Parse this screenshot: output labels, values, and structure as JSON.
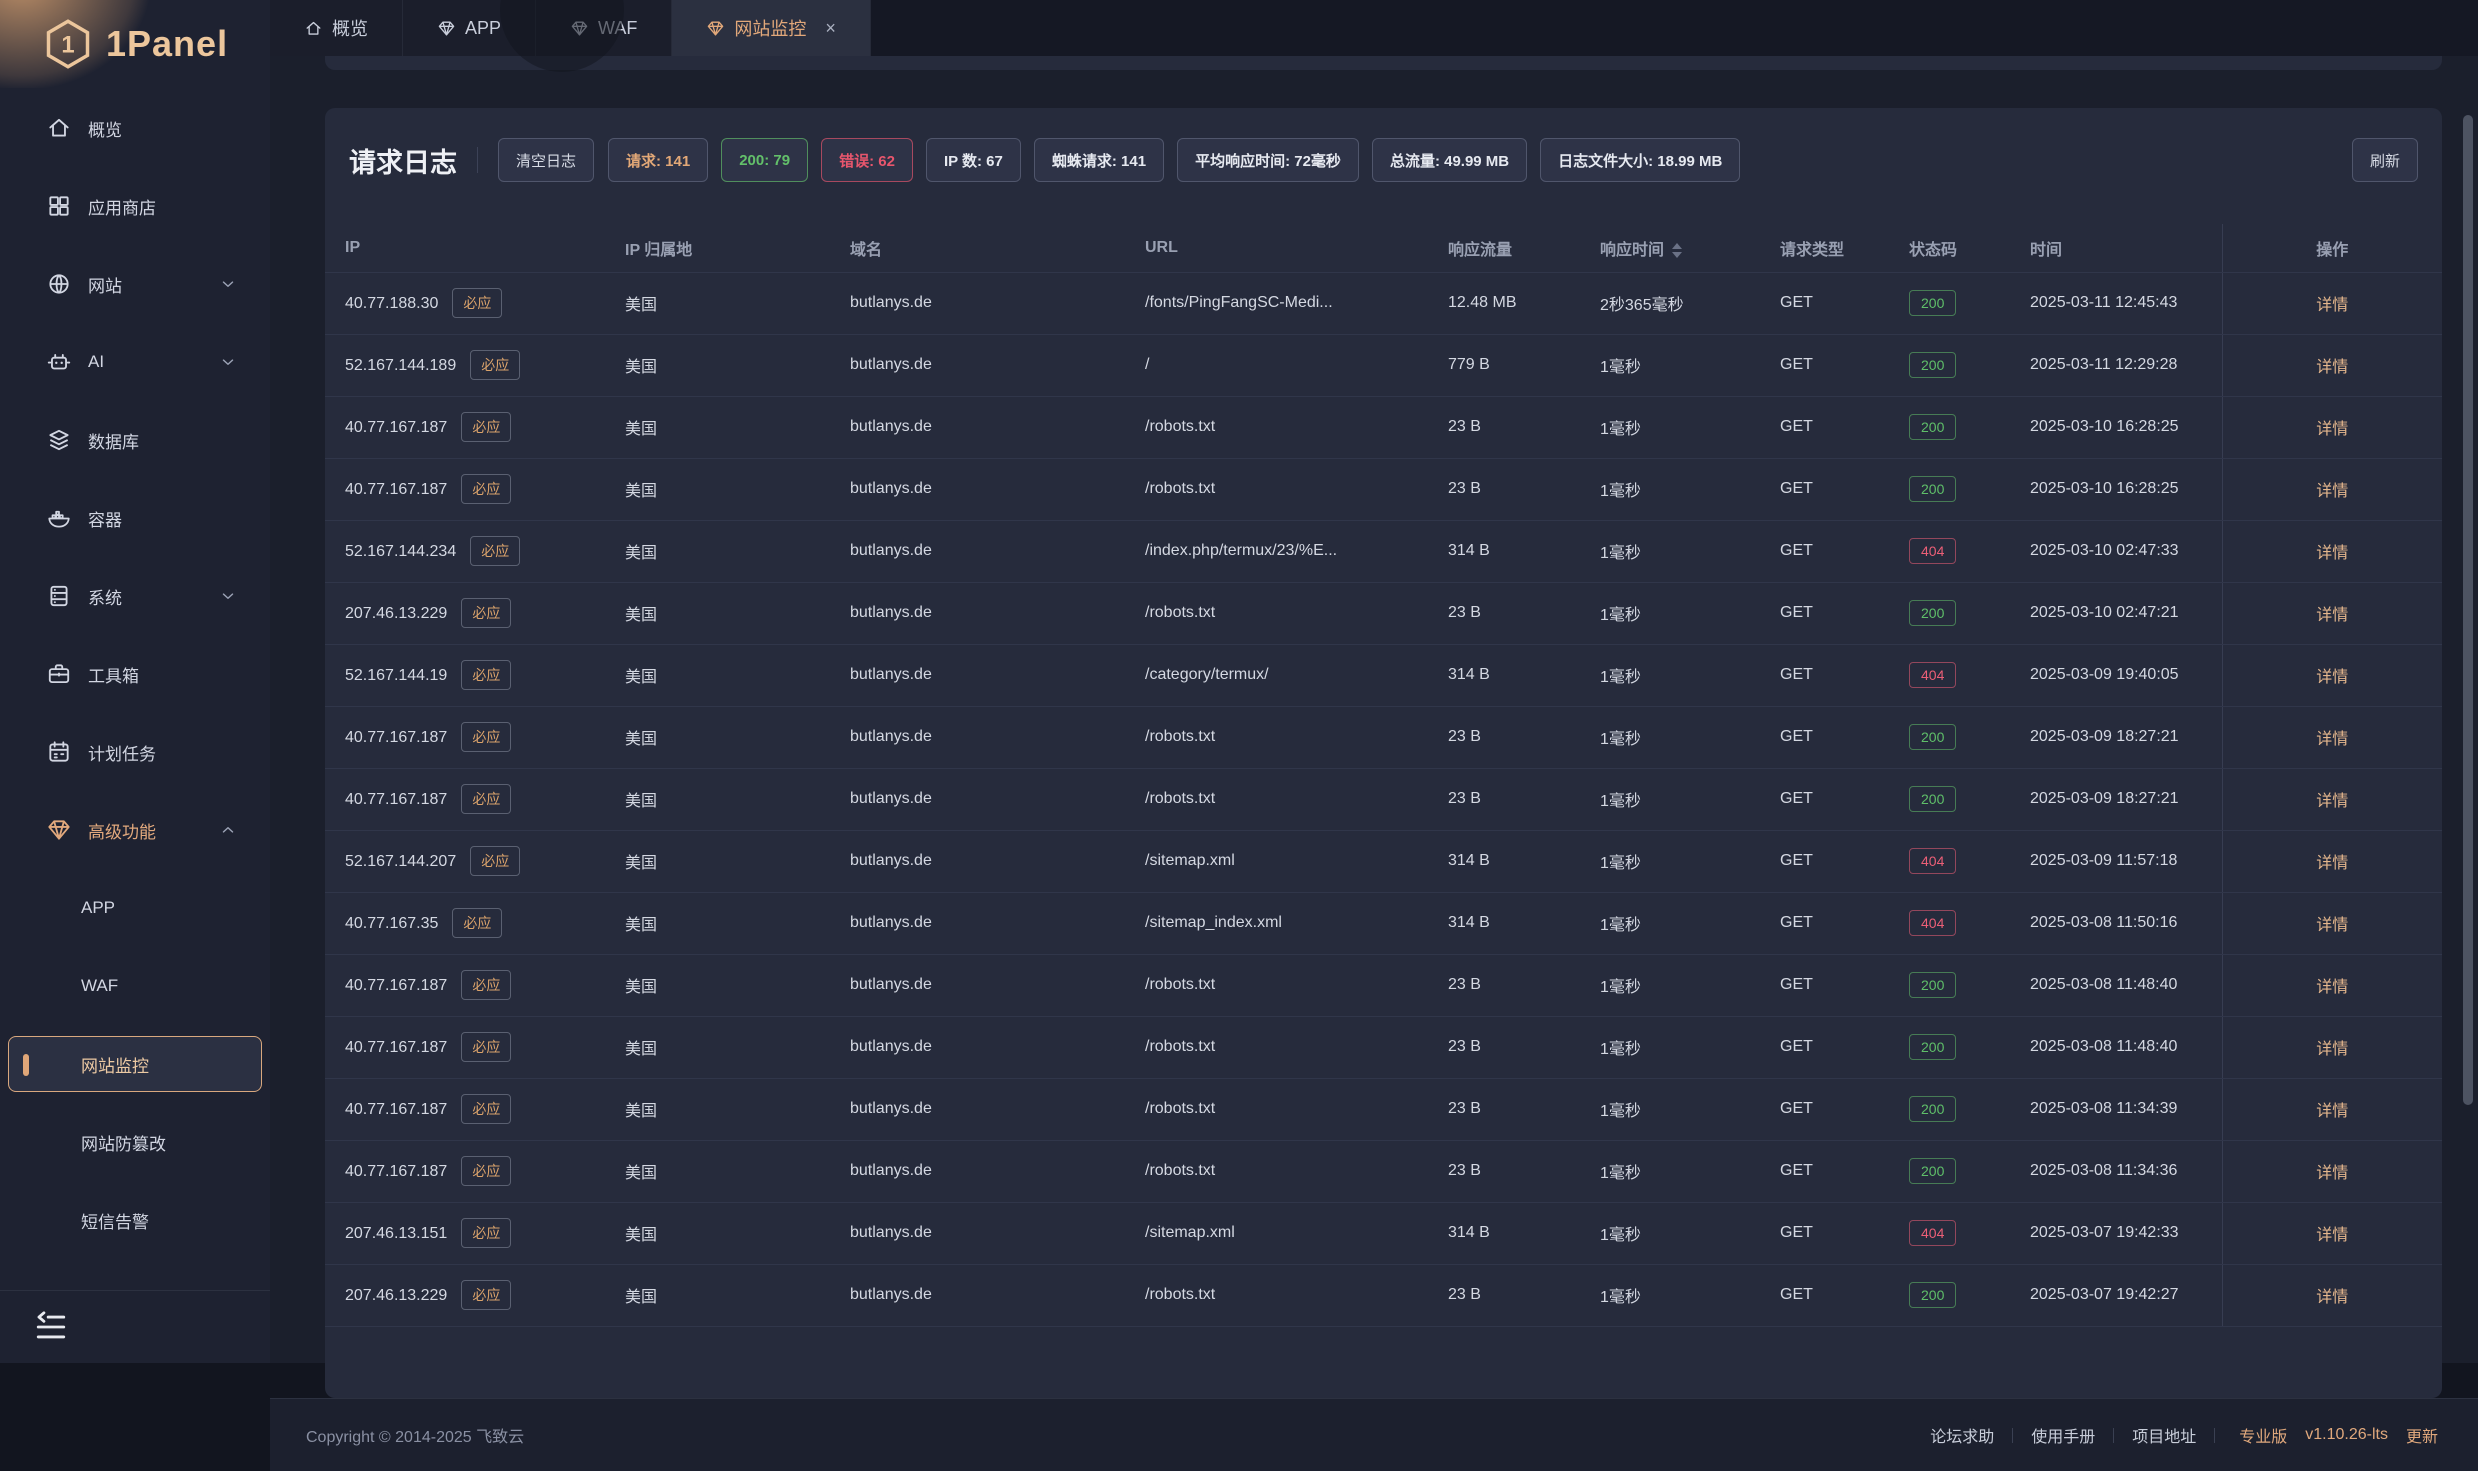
{
  "logo": {
    "text": "1Panel"
  },
  "tabs": [
    {
      "label": "概览",
      "icon": "home",
      "active": false,
      "closable": false
    },
    {
      "label": "APP",
      "icon": "gem",
      "active": false,
      "closable": false
    },
    {
      "label": "WAF",
      "icon": "gem",
      "active": false,
      "closable": false
    },
    {
      "label": "网站监控",
      "icon": "gem",
      "active": true,
      "closable": true,
      "close_glyph": "×"
    }
  ],
  "sidebar": {
    "items": [
      {
        "label": "概览",
        "icon": "home",
        "sub": false,
        "chevron": ""
      },
      {
        "label": "应用商店",
        "icon": "grid",
        "sub": false,
        "chevron": ""
      },
      {
        "label": "网站",
        "icon": "globe",
        "sub": false,
        "chevron": "down"
      },
      {
        "label": "AI",
        "icon": "robot",
        "sub": false,
        "chevron": "down"
      },
      {
        "label": "数据库",
        "icon": "layers",
        "sub": false,
        "chevron": ""
      },
      {
        "label": "容器",
        "icon": "docker",
        "sub": false,
        "chevron": ""
      },
      {
        "label": "系统",
        "icon": "server",
        "sub": false,
        "chevron": "down"
      },
      {
        "label": "工具箱",
        "icon": "toolbox",
        "sub": false,
        "chevron": ""
      },
      {
        "label": "计划任务",
        "icon": "calendar",
        "sub": false,
        "chevron": ""
      },
      {
        "label": "高级功能",
        "icon": "gem",
        "sub": false,
        "chevron": "up",
        "highlight": true
      },
      {
        "label": "APP",
        "sub": true,
        "chevron": ""
      },
      {
        "label": "WAF",
        "sub": true,
        "chevron": ""
      },
      {
        "label": "网站监控",
        "sub": true,
        "chevron": "",
        "active": true
      },
      {
        "label": "网站防篡改",
        "sub": true,
        "chevron": ""
      },
      {
        "label": "短信告警",
        "sub": true,
        "chevron": ""
      }
    ]
  },
  "toolbar": {
    "title": "请求日志",
    "clear_label": "清空日志",
    "refresh_label": "刷新",
    "stats": [
      {
        "label": "请求: 141",
        "color": "orange"
      },
      {
        "label": "200: 79",
        "color": "green"
      },
      {
        "label": "错误: 62",
        "color": "red"
      },
      {
        "label": "IP 数: 67",
        "color": ""
      },
      {
        "label": "蜘蛛请求: 141",
        "color": ""
      },
      {
        "label": "平均响应时间: 72毫秒",
        "color": ""
      },
      {
        "label": "总流量: 49.99 MB",
        "color": ""
      },
      {
        "label": "日志文件大小: 18.99 MB",
        "color": ""
      }
    ]
  },
  "table": {
    "columns": [
      "IP",
      "IP 归属地",
      "域名",
      "URL",
      "响应流量",
      "响应时间",
      "请求类型",
      "状态码",
      "时间",
      "操作"
    ],
    "spider_tag": "必应",
    "detail_label": "详情",
    "rows": [
      {
        "ip": "40.77.188.30",
        "region": "美国",
        "domain": "butlanys.de",
        "url": "/fonts/PingFangSC-Medi...",
        "size": "12.48 MB",
        "time": "2秒365毫秒",
        "method": "GET",
        "status": "200",
        "timestamp": "2025-03-11 12:45:43"
      },
      {
        "ip": "52.167.144.189",
        "region": "美国",
        "domain": "butlanys.de",
        "url": "/",
        "size": "779 B",
        "time": "1毫秒",
        "method": "GET",
        "status": "200",
        "timestamp": "2025-03-11 12:29:28"
      },
      {
        "ip": "40.77.167.187",
        "region": "美国",
        "domain": "butlanys.de",
        "url": "/robots.txt",
        "size": "23 B",
        "time": "1毫秒",
        "method": "GET",
        "status": "200",
        "timestamp": "2025-03-10 16:28:25"
      },
      {
        "ip": "40.77.167.187",
        "region": "美国",
        "domain": "butlanys.de",
        "url": "/robots.txt",
        "size": "23 B",
        "time": "1毫秒",
        "method": "GET",
        "status": "200",
        "timestamp": "2025-03-10 16:28:25"
      },
      {
        "ip": "52.167.144.234",
        "region": "美国",
        "domain": "butlanys.de",
        "url": "/index.php/termux/23/%E...",
        "size": "314 B",
        "time": "1毫秒",
        "method": "GET",
        "status": "404",
        "timestamp": "2025-03-10 02:47:33"
      },
      {
        "ip": "207.46.13.229",
        "region": "美国",
        "domain": "butlanys.de",
        "url": "/robots.txt",
        "size": "23 B",
        "time": "1毫秒",
        "method": "GET",
        "status": "200",
        "timestamp": "2025-03-10 02:47:21"
      },
      {
        "ip": "52.167.144.19",
        "region": "美国",
        "domain": "butlanys.de",
        "url": "/category/termux/",
        "size": "314 B",
        "time": "1毫秒",
        "method": "GET",
        "status": "404",
        "timestamp": "2025-03-09 19:40:05"
      },
      {
        "ip": "40.77.167.187",
        "region": "美国",
        "domain": "butlanys.de",
        "url": "/robots.txt",
        "size": "23 B",
        "time": "1毫秒",
        "method": "GET",
        "status": "200",
        "timestamp": "2025-03-09 18:27:21"
      },
      {
        "ip": "40.77.167.187",
        "region": "美国",
        "domain": "butlanys.de",
        "url": "/robots.txt",
        "size": "23 B",
        "time": "1毫秒",
        "method": "GET",
        "status": "200",
        "timestamp": "2025-03-09 18:27:21"
      },
      {
        "ip": "52.167.144.207",
        "region": "美国",
        "domain": "butlanys.de",
        "url": "/sitemap.xml",
        "size": "314 B",
        "time": "1毫秒",
        "method": "GET",
        "status": "404",
        "timestamp": "2025-03-09 11:57:18"
      },
      {
        "ip": "40.77.167.35",
        "region": "美国",
        "domain": "butlanys.de",
        "url": "/sitemap_index.xml",
        "size": "314 B",
        "time": "1毫秒",
        "method": "GET",
        "status": "404",
        "timestamp": "2025-03-08 11:50:16"
      },
      {
        "ip": "40.77.167.187",
        "region": "美国",
        "domain": "butlanys.de",
        "url": "/robots.txt",
        "size": "23 B",
        "time": "1毫秒",
        "method": "GET",
        "status": "200",
        "timestamp": "2025-03-08 11:48:40"
      },
      {
        "ip": "40.77.167.187",
        "region": "美国",
        "domain": "butlanys.de",
        "url": "/robots.txt",
        "size": "23 B",
        "time": "1毫秒",
        "method": "GET",
        "status": "200",
        "timestamp": "2025-03-08 11:48:40"
      },
      {
        "ip": "40.77.167.187",
        "region": "美国",
        "domain": "butlanys.de",
        "url": "/robots.txt",
        "size": "23 B",
        "time": "1毫秒",
        "method": "GET",
        "status": "200",
        "timestamp": "2025-03-08 11:34:39"
      },
      {
        "ip": "40.77.167.187",
        "region": "美国",
        "domain": "butlanys.de",
        "url": "/robots.txt",
        "size": "23 B",
        "time": "1毫秒",
        "method": "GET",
        "status": "200",
        "timestamp": "2025-03-08 11:34:36"
      },
      {
        "ip": "207.46.13.151",
        "region": "美国",
        "domain": "butlanys.de",
        "url": "/sitemap.xml",
        "size": "314 B",
        "time": "1毫秒",
        "method": "GET",
        "status": "404",
        "timestamp": "2025-03-07 19:42:33"
      },
      {
        "ip": "207.46.13.229",
        "region": "美国",
        "domain": "butlanys.de",
        "url": "/robots.txt",
        "size": "23 B",
        "time": "1毫秒",
        "method": "GET",
        "status": "200",
        "timestamp": "2025-03-07 19:42:27"
      }
    ]
  },
  "footer": {
    "copyright": "Copyright © 2014-2025 飞致云",
    "links": [
      "论坛求助",
      "使用手册",
      "项目地址"
    ],
    "edition": "专业版",
    "version": "v1.10.26-lts",
    "update_label": "更新"
  },
  "colors": {
    "accent_orange": "#e2a877",
    "success_green": "#5fbf69",
    "error_red": "#ec5f77",
    "card_bg": "#262b3c",
    "sidebar_bg": "#1e2231"
  }
}
